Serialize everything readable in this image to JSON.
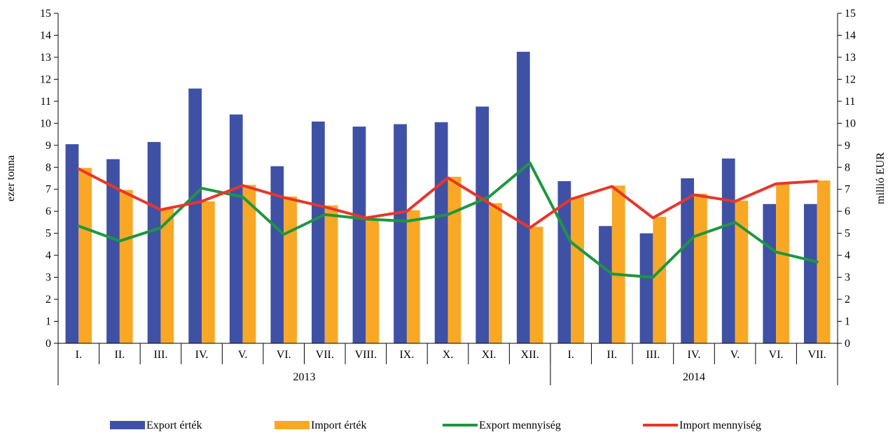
{
  "chart_data": {
    "type": "bar",
    "categories": [
      "I.",
      "II.",
      "III.",
      "IV.",
      "V.",
      "VI.",
      "VII.",
      "VIII.",
      "IX.",
      "X.",
      "XI.",
      "XII.",
      "I.",
      "II.",
      "III.",
      "IV.",
      "V.",
      "VI.",
      "VII."
    ],
    "groups": [
      {
        "label": "2013",
        "count": 12
      },
      {
        "label": "2014",
        "count": 7
      }
    ],
    "ylabel_left": "ezer tonna",
    "ylabel_right": "millió EUR",
    "ylim": [
      0,
      15
    ],
    "yticks": [
      "0",
      "1",
      "2",
      "3",
      "4",
      "5",
      "6",
      "7",
      "8",
      "9",
      "10",
      "11",
      "12",
      "13",
      "14",
      "15"
    ],
    "legend_position": "bottom",
    "grid": false,
    "series": [
      {
        "name": "Export érték",
        "kind": "bar",
        "color": "#3F51A5",
        "values": [
          9.05,
          8.37,
          9.15,
          11.58,
          10.4,
          8.05,
          10.08,
          9.85,
          9.96,
          10.05,
          10.76,
          13.25,
          7.37,
          5.33,
          5.0,
          7.5,
          8.4,
          6.33,
          6.33
        ]
      },
      {
        "name": "Import érték",
        "kind": "bar",
        "color": "#F9A825",
        "values": [
          7.97,
          6.97,
          6.1,
          6.45,
          7.2,
          6.67,
          6.27,
          5.67,
          6.05,
          7.57,
          6.37,
          5.3,
          6.63,
          7.17,
          5.75,
          6.8,
          6.48,
          7.22,
          7.4
        ]
      },
      {
        "name": "Export mennyiség",
        "kind": "line",
        "color": "#1E9640",
        "values": [
          5.33,
          4.65,
          5.25,
          7.05,
          6.65,
          4.95,
          5.85,
          5.65,
          5.55,
          5.85,
          6.65,
          8.2,
          4.6,
          3.15,
          3.0,
          4.85,
          5.5,
          4.15,
          3.7
        ]
      },
      {
        "name": "Import mennyiség",
        "kind": "line",
        "color": "#E8362A",
        "values": [
          7.93,
          6.97,
          6.07,
          6.45,
          7.17,
          6.63,
          6.2,
          5.7,
          6.0,
          7.52,
          6.38,
          5.25,
          6.55,
          7.13,
          5.7,
          6.75,
          6.45,
          7.25,
          7.37
        ]
      }
    ]
  }
}
